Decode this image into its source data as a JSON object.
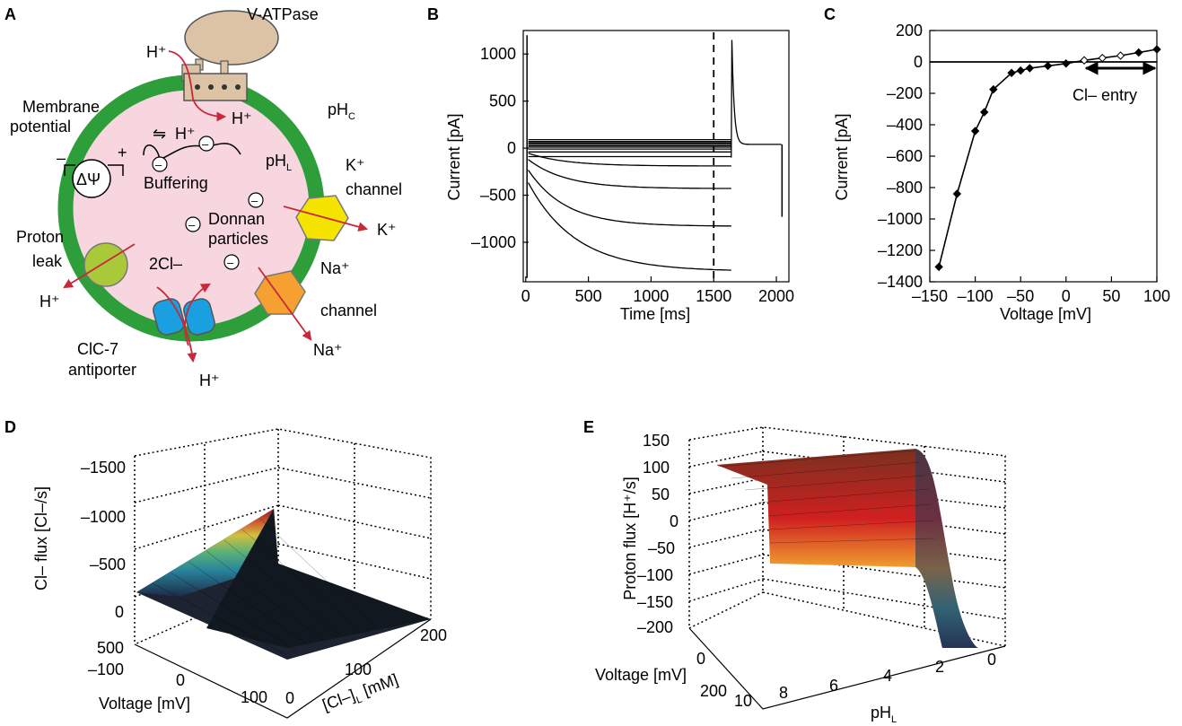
{
  "panels": {
    "a": "A",
    "b": "B",
    "c": "C",
    "d": "D",
    "e": "E"
  },
  "diagram": {
    "v_atpase": "V-ATPase",
    "h_plus": "H⁺",
    "membrane_potential_1": "Membrane",
    "membrane_potential_2": "potential",
    "ph_c": "pH",
    "ph_c_sub": "C",
    "ph_l": "pH",
    "ph_l_sub": "L",
    "minus": "–",
    "plus": "+",
    "delta_psi": "ΔΨ",
    "buffering": "Buffering",
    "donnan_1": "Donnan",
    "donnan_2": "particles",
    "k_channel_1": "K⁺",
    "k_channel_2": "channel",
    "k_out": "K⁺",
    "proton_leak_1": "Proton",
    "proton_leak_2": "leak",
    "two_cl": "2Cl–",
    "na_channel_1": "Na⁺",
    "na_channel_2": "channel",
    "na_out": "Na⁺",
    "clc7_1": "ClC-7",
    "clc7_2": "antiporter",
    "equilibrium": "⇋",
    "colors": {
      "membrane": "#2e9e3a",
      "lumen": "#f7d6e0",
      "vatpase": "#ddc3a5",
      "k_channel": "#f5e400",
      "na_channel": "#f5a030",
      "leak": "#a9c93a",
      "antiporter": "#1aa0e0",
      "arrow": "#c8283a"
    }
  },
  "chart_data": [
    {
      "id": "B",
      "type": "line",
      "xlabel": "Time [ms]",
      "ylabel": "Current [pA]",
      "xlim": [
        -20,
        2100
      ],
      "ylim": [
        -1420,
        1250
      ],
      "xticks": [
        0,
        500,
        1000,
        1500,
        2000
      ],
      "yticks": [
        -1000,
        -500,
        0,
        500,
        1000
      ],
      "dashed_line_x": 1500,
      "traces": [
        {
          "plateau": 90
        },
        {
          "plateau": 70
        },
        {
          "plateau": 55
        },
        {
          "plateau": 40
        },
        {
          "plateau": 25
        },
        {
          "plateau": 10
        },
        {
          "plateau": -10
        },
        {
          "plateau": -40
        },
        {
          "plateau": -90
        },
        {
          "plateau": -190
        },
        {
          "plateau": -430
        },
        {
          "plateau": -830
        },
        {
          "plateau": -1310
        }
      ]
    },
    {
      "id": "C",
      "type": "line",
      "xlabel": "Voltage [mV]",
      "ylabel": "Current [pA]",
      "xlim": [
        -150,
        100
      ],
      "ylim": [
        -1400,
        200
      ],
      "xticks": [
        -150,
        -100,
        -50,
        0,
        50,
        100
      ],
      "xtick_labels": [
        "–150",
        "–100",
        "–50",
        "0",
        "50",
        "100"
      ],
      "yticks": [
        200,
        0,
        -200,
        -400,
        -600,
        -800,
        -1000,
        -1200,
        -1400
      ],
      "ytick_labels": [
        "200",
        "0",
        "–200",
        "–400",
        "–600",
        "–800",
        "–1000",
        "–1200",
        "–1400"
      ],
      "annotation": "Cl– entry",
      "annotation_range": [
        20,
        100
      ],
      "x": [
        -140,
        -120,
        -100,
        -90,
        -80,
        -60,
        -50,
        -40,
        -20,
        0,
        20,
        40,
        60,
        80,
        100
      ],
      "y": [
        -1305,
        -840,
        -440,
        -320,
        -175,
        -70,
        -55,
        -40,
        -25,
        -10,
        10,
        25,
        40,
        60,
        80
      ]
    }
  ],
  "panel_d": {
    "zlabel": "Cl– flux [Cl–/s]",
    "xlabel": "Voltage [mV]",
    "ylabel_main": "[Cl–]",
    "ylabel_sub": "L",
    "ylabel_unit": " [mM]",
    "zticks": [
      "–1500",
      "–1000",
      "–500",
      "0",
      "500"
    ],
    "xticks": [
      "–100",
      "0",
      "100"
    ],
    "yticks": [
      "0",
      "100",
      "200"
    ]
  },
  "panel_e": {
    "zlabel": "Proton flux [H⁺/s]",
    "xlabel": "Voltage [mV]",
    "ylabel_main": "pH",
    "ylabel_sub": "L",
    "zticks": [
      "150",
      "100",
      "50",
      "0",
      "–50",
      "–100",
      "–150"
    ],
    "xticks": [
      "–200",
      "0",
      "200"
    ],
    "yticks": [
      "10",
      "8",
      "6",
      "4",
      "2",
      "0"
    ]
  }
}
